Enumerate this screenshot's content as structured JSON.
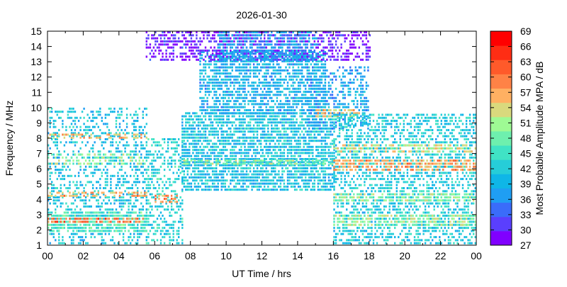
{
  "chart_data": {
    "type": "heatmap",
    "title": "2026-01-30",
    "xlabel": "UT Time / hrs",
    "ylabel": "Frequency / MHz",
    "colorbar_label": "Most Probable Amplitude MPA / dB",
    "xlim": [
      0,
      24
    ],
    "ylim": [
      1,
      15
    ],
    "x_ticks": [
      "00",
      "02",
      "04",
      "06",
      "08",
      "10",
      "12",
      "14",
      "16",
      "18",
      "20",
      "22",
      "00"
    ],
    "y_ticks": [
      "1",
      "2",
      "3",
      "4",
      "5",
      "6",
      "7",
      "8",
      "9",
      "10",
      "11",
      "12",
      "13",
      "14",
      "15"
    ],
    "colorbar_ticks": [
      "27",
      "30",
      "33",
      "36",
      "39",
      "42",
      "45",
      "48",
      "51",
      "54",
      "57",
      "60",
      "63",
      "66",
      "69"
    ],
    "colorbar_range": [
      27,
      69
    ],
    "colors": [
      "#8000ff",
      "#5a3ffe",
      "#3a6cfa",
      "#1f9ef3",
      "#0fb6e7",
      "#26cdd8",
      "#40e3c5",
      "#6ef0ae",
      "#9efa94",
      "#d9d97d",
      "#ffb062",
      "#ff8246",
      "#ff5a2a",
      "#ff2d14",
      "#ff0000"
    ],
    "regions": [
      {
        "t0": 0.0,
        "t1": 5.5,
        "f0": 1.0,
        "f1": 9.8,
        "density": 0.35,
        "mpa": 41
      },
      {
        "t0": 0.0,
        "t1": 5.5,
        "f0": 1.8,
        "f1": 3.2,
        "density": 0.7,
        "mpa": 46
      },
      {
        "t0": 0.0,
        "t1": 5.5,
        "f0": 2.4,
        "f1": 2.8,
        "density": 0.6,
        "mpa": 60
      },
      {
        "t0": 0.0,
        "t1": 5.5,
        "f0": 4.1,
        "f1": 4.4,
        "density": 0.55,
        "mpa": 57
      },
      {
        "t0": 0.0,
        "t1": 5.5,
        "f0": 6.2,
        "f1": 7.0,
        "density": 0.45,
        "mpa": 50
      },
      {
        "t0": 0.0,
        "t1": 5.5,
        "f0": 7.9,
        "f1": 8.2,
        "density": 0.45,
        "mpa": 56
      },
      {
        "t0": 5.5,
        "t1": 7.5,
        "f0": 1.0,
        "f1": 8.0,
        "density": 0.45,
        "mpa": 43
      },
      {
        "t0": 6.0,
        "t1": 7.2,
        "f0": 3.7,
        "f1": 4.3,
        "density": 0.6,
        "mpa": 58
      },
      {
        "t0": 7.5,
        "t1": 16.0,
        "f0": 4.5,
        "f1": 9.5,
        "density": 0.75,
        "mpa": 41
      },
      {
        "t0": 7.5,
        "t1": 16.0,
        "f0": 6.2,
        "f1": 6.6,
        "density": 0.6,
        "mpa": 49
      },
      {
        "t0": 8.5,
        "t1": 15.5,
        "f0": 9.5,
        "f1": 13.5,
        "density": 0.7,
        "mpa": 39
      },
      {
        "t0": 5.5,
        "t1": 18.0,
        "f0": 13.0,
        "f1": 15.0,
        "density": 0.55,
        "mpa": 29
      },
      {
        "t0": 9.5,
        "t1": 15.0,
        "f0": 13.0,
        "f1": 15.0,
        "density": 0.6,
        "mpa": 37
      },
      {
        "t0": 14.5,
        "t1": 18.0,
        "f0": 8.5,
        "f1": 12.5,
        "density": 0.45,
        "mpa": 38
      },
      {
        "t0": 15.0,
        "t1": 17.5,
        "f0": 9.3,
        "f1": 9.8,
        "density": 0.55,
        "mpa": 55
      },
      {
        "t0": 16.0,
        "t1": 24.0,
        "f0": 1.0,
        "f1": 9.5,
        "density": 0.5,
        "mpa": 42
      },
      {
        "t0": 16.0,
        "t1": 24.0,
        "f0": 5.8,
        "f1": 6.6,
        "density": 0.6,
        "mpa": 57
      },
      {
        "t0": 16.0,
        "t1": 24.0,
        "f0": 7.0,
        "f1": 7.6,
        "density": 0.5,
        "mpa": 53
      },
      {
        "t0": 16.0,
        "t1": 24.0,
        "f0": 2.2,
        "f1": 3.0,
        "density": 0.6,
        "mpa": 50
      },
      {
        "t0": 16.0,
        "t1": 24.0,
        "f0": 3.8,
        "f1": 4.4,
        "density": 0.55,
        "mpa": 50
      }
    ]
  }
}
